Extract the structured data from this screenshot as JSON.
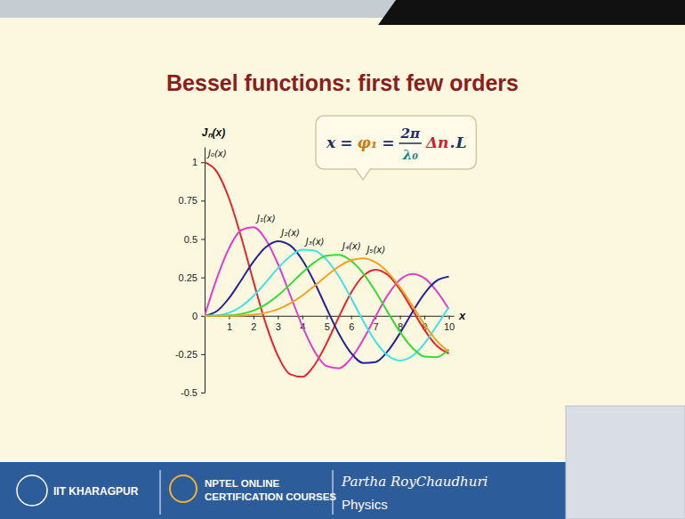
{
  "chart_data": {
    "type": "line",
    "title": "Bessel functions: first few orders",
    "x_label": "x",
    "y_label": "Jₙ(x)",
    "x": [
      0,
      0.5,
      1,
      1.5,
      2,
      2.5,
      3,
      3.5,
      4,
      4.5,
      5,
      5.5,
      6,
      6.5,
      7,
      7.5,
      8,
      8.5,
      9,
      9.5,
      10
    ],
    "series": [
      {
        "name": "J₀(x)",
        "color": "#e3262f",
        "values": [
          1,
          0.9385,
          0.7652,
          0.5118,
          0.2239,
          -0.0484,
          -0.2601,
          -0.3801,
          -0.3971,
          -0.3205,
          -0.1776,
          -0.0068,
          0.1506,
          0.2601,
          0.3001,
          0.2663,
          0.1717,
          0.0419,
          -0.0903,
          -0.1939,
          -0.2459
        ]
      },
      {
        "name": "J₁(x)",
        "color": "#e040c8",
        "values": [
          0,
          0.2423,
          0.4401,
          0.5579,
          0.5767,
          0.4971,
          0.3391,
          0.1374,
          -0.066,
          -0.2311,
          -0.3276,
          -0.3414,
          -0.2767,
          -0.1538,
          -0.0047,
          0.1352,
          0.2346,
          0.2731,
          0.2453,
          0.1613,
          0.0435
        ]
      },
      {
        "name": "J₂(x)",
        "color": "#23239a",
        "values": [
          0,
          0.0306,
          0.1149,
          0.2321,
          0.3528,
          0.4461,
          0.4861,
          0.4586,
          0.3641,
          0.2178,
          0.0466,
          -0.1173,
          -0.2429,
          -0.3074,
          -0.3014,
          -0.2303,
          -0.113,
          0.0223,
          0.1448,
          0.2279,
          0.2546
        ]
      },
      {
        "name": "J₃(x)",
        "color": "#3fe3e6",
        "values": [
          0,
          0.0026,
          0.0196,
          0.061,
          0.1289,
          0.2166,
          0.3091,
          0.3868,
          0.4302,
          0.4247,
          0.3648,
          0.2561,
          0.1148,
          -0.0353,
          -0.1676,
          -0.2581,
          -0.2911,
          -0.2626,
          -0.1809,
          -0.0653,
          0.0584
        ]
      },
      {
        "name": "J₄(x)",
        "color": "#35dc35",
        "values": [
          0,
          0.0002,
          0.0025,
          0.0118,
          0.034,
          0.0737,
          0.1321,
          0.2045,
          0.2812,
          0.3485,
          0.3912,
          0.3967,
          0.3577,
          0.2748,
          0.1577,
          0.0238,
          -0.1053,
          -0.2077,
          -0.2654,
          -0.2691,
          -0.2196
        ]
      },
      {
        "name": "J₅(x)",
        "color": "#f3a21f",
        "values": [
          0,
          0,
          0.0002,
          0.0018,
          0.007,
          0.0195,
          0.043,
          0.0806,
          0.1321,
          0.1949,
          0.2611,
          0.3209,
          0.3621,
          0.3735,
          0.3479,
          0.2835,
          0.1858,
          0.0671,
          -0.055,
          -0.1613,
          -0.2341
        ]
      }
    ],
    "xlim": [
      0,
      10.2
    ],
    "ylim": [
      -0.5,
      1.1
    ],
    "xticks": [
      1,
      2,
      3,
      4,
      5,
      6,
      7,
      8,
      9,
      10
    ],
    "yticks": [
      -0.5,
      -0.25,
      0,
      0.25,
      0.5,
      0.75,
      1
    ],
    "grid": false,
    "annotation": {
      "left": [
        "x",
        "=",
        "φ₁",
        "="
      ],
      "numerator": "2π",
      "denominator": "λ₀",
      "right": [
        "Δn",
        ".",
        "L"
      ]
    }
  },
  "footer": {
    "institute": "IIT KHARAGPUR",
    "course": [
      "NPTEL ONLINE",
      "CERTIFICATION COURSES"
    ],
    "instructor": "Partha RoyChaudhuri",
    "subject": "Physics"
  }
}
